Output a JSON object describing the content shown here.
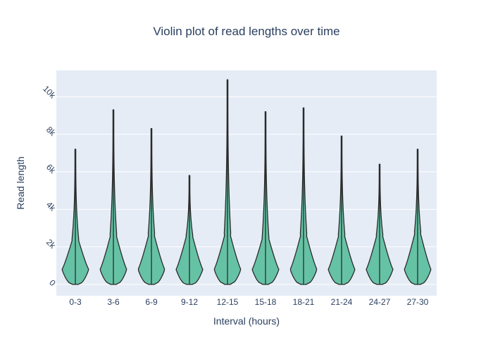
{
  "chart_data": {
    "type": "violin",
    "title": "Violin plot of read lengths over time",
    "xlabel": "Interval (hours)",
    "ylabel": "Read length",
    "categories": [
      "0-3",
      "3-6",
      "6-9",
      "9-12",
      "12-15",
      "15-18",
      "18-21",
      "21-24",
      "24-27",
      "27-30"
    ],
    "y_ticks": [
      0,
      2000,
      4000,
      6000,
      8000,
      10000
    ],
    "y_tick_labels": [
      "0",
      "2k",
      "4k",
      "6k",
      "8k",
      "10k"
    ],
    "ylim": [
      -600,
      11400
    ],
    "max_values": [
      7200,
      9300,
      8300,
      5800,
      10900,
      9200,
      9400,
      7900,
      6400,
      7200
    ],
    "min_values": [
      0,
      0,
      0,
      0,
      0,
      0,
      0,
      0,
      0,
      0
    ],
    "bulk_upper": [
      2400,
      2600,
      2600,
      2600,
      2600,
      2500,
      2600,
      2600,
      2600,
      2700
    ],
    "mode_values": [
      800,
      800,
      800,
      800,
      800,
      800,
      800,
      800,
      800,
      800
    ],
    "grid": true,
    "colors": {
      "fill": "#66c2a5",
      "outline": "#2b2b2b",
      "plot_background": "#e5ecf6",
      "grid": "#ffffff",
      "text": "#2a3f5f"
    }
  }
}
